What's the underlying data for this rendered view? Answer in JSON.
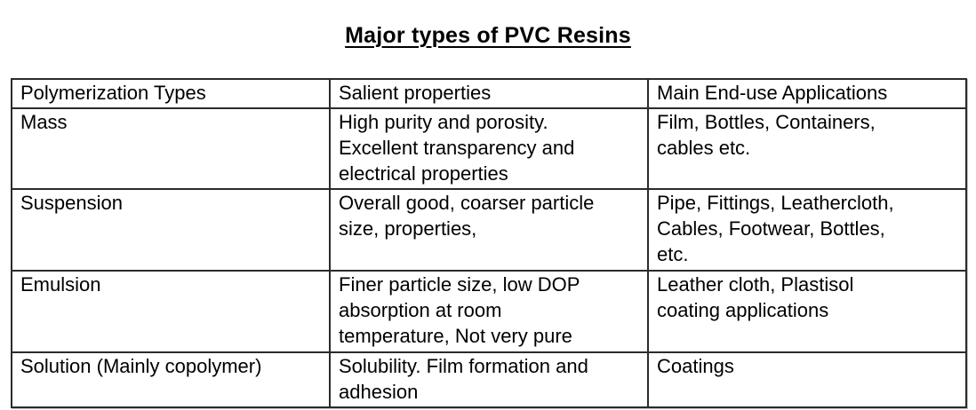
{
  "page": {
    "title": "Major types of PVC Resins"
  },
  "table": {
    "headers": [
      "Polymerization Types",
      "Salient properties",
      "Main End-use Applications"
    ],
    "rows": [
      [
        "Mass",
        "High purity and porosity.\nExcellent transparency and\nelectrical properties",
        "Film, Bottles, Containers,\ncables etc."
      ],
      [
        "Suspension",
        "Overall good, coarser particle\nsize, properties,",
        "Pipe, Fittings, Leathercloth,\nCables, Footwear, Bottles,\netc."
      ],
      [
        "Emulsion",
        "Finer particle size, low DOP\nabsorption at room\ntemperature, Not very pure",
        "Leather cloth, Plastisol\ncoating applications"
      ],
      [
        "Solution (Mainly copolymer)",
        "Solubility. Film formation and\nadhesion",
        "Coatings"
      ]
    ]
  },
  "colors": {
    "background": "#ffffff",
    "text": "#000000",
    "border": "#2b2b2b"
  }
}
